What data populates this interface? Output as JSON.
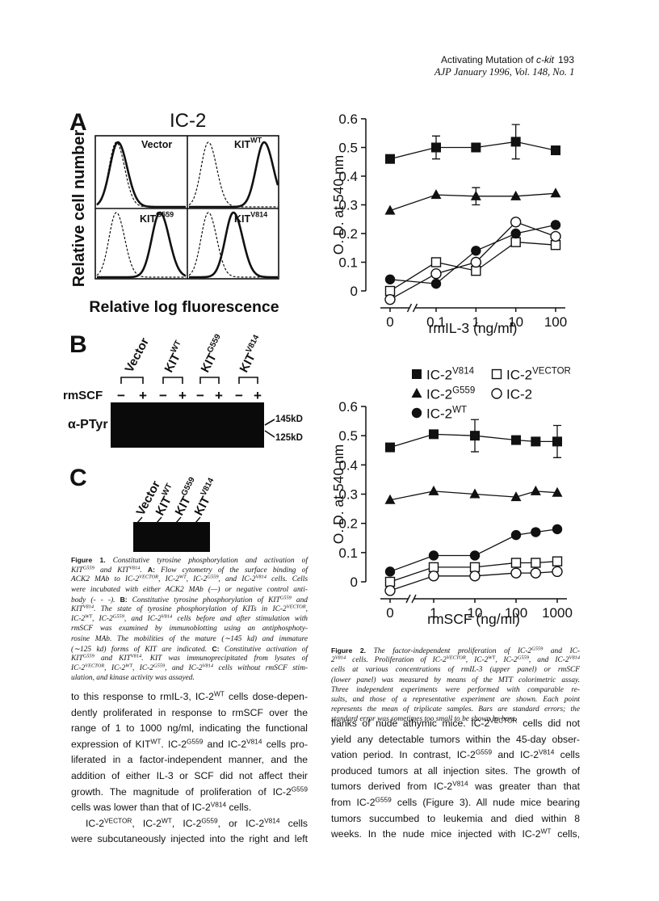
{
  "header": {
    "running_title": [
      "Activating Mutation of ",
      {
        "i": "c-kit"
      }
    ],
    "page_number": "193",
    "journal": "AJP January 1996, Vol. 148, No. 1"
  },
  "figure1": {
    "panel_a": {
      "label": "A",
      "title": "IC-2",
      "panels": [
        [
          "Vector"
        ],
        [
          "KIT",
          {
            "sup": "WT"
          }
        ],
        [
          "KIT",
          {
            "sup": "G559"
          }
        ],
        [
          "KIT",
          {
            "sup": "V814"
          }
        ]
      ],
      "y_label": "Relative cell number",
      "x_label": "Relative log fluorescence"
    },
    "panel_b": {
      "label": "B",
      "lanes": [
        [
          "Vector"
        ],
        [
          "KIT",
          {
            "sup": "WT"
          }
        ],
        [
          "KIT",
          {
            "sup": "G559"
          }
        ],
        [
          "KIT",
          {
            "sup": "V814"
          }
        ]
      ],
      "row_label": "rmSCF",
      "signs": [
        "−",
        "+",
        "−",
        "+",
        "−",
        "+",
        "−",
        "+"
      ],
      "blot_label": "α-PTyr",
      "markers": [
        "145kD",
        "125kD"
      ]
    },
    "panel_c": {
      "label": "C",
      "lanes": [
        [
          "Vector"
        ],
        [
          "KIT",
          {
            "sup": "WT"
          }
        ],
        [
          "KIT",
          {
            "sup": "G559"
          }
        ],
        [
          "KIT",
          {
            "sup": "V814"
          }
        ]
      ]
    },
    "caption": [
      [
        {
          "b": "Figure 1."
        },
        " Constitutive tyrosine phosphorylation and activation of"
      ],
      [
        "KIT",
        {
          "sup": "G559"
        },
        " and KIT",
        {
          "sup": "V814"
        },
        ". ",
        {
          "b": "A:"
        },
        " Flow cytometry of the surface binding of"
      ],
      [
        "ACK2 MAb to IC-2",
        {
          "sup": "VECTOR"
        },
        ", IC-2",
        {
          "sup": "WT"
        },
        ", IC-2",
        {
          "sup": "G559"
        },
        ", and IC-2",
        {
          "sup": "V814"
        },
        " cells. Cells"
      ],
      [
        "were incubated with either ACK2 MAb (—) or negative control anti-"
      ],
      [
        "body (- - -). ",
        {
          "b": "B:"
        },
        " Constitutive tyrosine phosphorylation of KIT",
        {
          "sup": "G559"
        },
        " and"
      ],
      [
        "KIT",
        {
          "sup": "V814"
        },
        ". The state of tyrosine phosphorylation of KITs in IC-2",
        {
          "sup": "VECTOR"
        },
        ","
      ],
      [
        "IC-2",
        {
          "sup": "WT"
        },
        ", IC-2",
        {
          "sup": "G559"
        },
        ", and IC-2",
        {
          "sup": "V814"
        },
        " cells before and after stimulation with"
      ],
      [
        "rmSCF was examined by immunoblotting using an antiphosphoty-"
      ],
      [
        "rosine MAb. The mobilities of the mature (∼145 kd) and immature"
      ],
      [
        "(∼125 kd) forms of KIT are indicated. ",
        {
          "b": "C:"
        },
        " Constitutive activation of"
      ],
      [
        "KIT",
        {
          "sup": "G559"
        },
        " and KIT",
        {
          "sup": "V814"
        },
        ". KIT was immunoprecipitated from lysates of"
      ],
      [
        "IC-2",
        {
          "sup": "VECTOR"
        },
        ", IC-2",
        {
          "sup": "WT"
        },
        ", IC-2",
        {
          "sup": "G559"
        },
        ", and IC-2",
        {
          "sup": "V814"
        },
        " cells without rmSCF stim-"
      ],
      [
        "ulation, and kinase activity was assayed."
      ]
    ]
  },
  "chart_data": [
    {
      "type": "line",
      "y_label": "O. D. at 540 nm",
      "x_label": "rmIL-3 (ng/ml)",
      "xscale": "log",
      "x_break": true,
      "x": [
        0,
        0.1,
        1,
        10,
        100
      ],
      "xlim": [
        0.1,
        100
      ],
      "xticks": [
        0,
        0.1,
        1,
        10,
        100
      ],
      "ylim": [
        0,
        0.6
      ],
      "yticks": [
        0,
        0.1,
        0.2,
        0.3,
        0.4,
        0.5,
        0.6
      ],
      "series": [
        {
          "marker": "filled-square",
          "color": "#111111",
          "values": [
            0.46,
            0.5,
            0.5,
            0.52,
            0.49
          ],
          "errors": [
            null,
            0.04,
            null,
            0.06,
            null
          ]
        },
        {
          "marker": "open-square",
          "color": "#111111",
          "values": [
            0.0,
            0.1,
            0.07,
            0.17,
            0.16
          ]
        },
        {
          "marker": "filled-triangle",
          "color": "#111111",
          "values": [
            0.28,
            0.335,
            0.33,
            0.33,
            0.34
          ],
          "errors": [
            null,
            null,
            0.03,
            null,
            null
          ]
        },
        {
          "marker": "open-circle",
          "color": "#111111",
          "values": [
            -0.03,
            0.06,
            0.1,
            0.24,
            0.19
          ]
        },
        {
          "marker": "filled-circle",
          "color": "#111111",
          "values": [
            0.04,
            0.025,
            0.14,
            0.2,
            0.23
          ]
        }
      ]
    },
    {
      "type": "line",
      "y_label": "O. D. at 540 nm",
      "x_label": "rmSCF (ng/ml)",
      "xscale": "log",
      "x_break": true,
      "x": [
        0,
        1,
        10,
        100,
        300,
        1000
      ],
      "xlim": [
        1,
        1000
      ],
      "xticks": [
        0,
        1,
        10,
        100,
        1000
      ],
      "ylim": [
        0,
        0.6
      ],
      "yticks": [
        0,
        0.1,
        0.2,
        0.3,
        0.4,
        0.5,
        0.6
      ],
      "series": [
        {
          "marker": "filled-square",
          "color": "#111111",
          "values": [
            0.46,
            0.505,
            0.5,
            0.485,
            0.48,
            0.48
          ],
          "errors": [
            null,
            null,
            0.055,
            null,
            null,
            0.055
          ]
        },
        {
          "marker": "open-square",
          "color": "#111111",
          "values": [
            0.0,
            0.05,
            0.05,
            0.065,
            0.065,
            0.07
          ]
        },
        {
          "marker": "filled-triangle",
          "color": "#111111",
          "values": [
            0.28,
            0.31,
            0.3,
            0.29,
            0.31,
            0.305
          ]
        },
        {
          "marker": "open-circle",
          "color": "#111111",
          "values": [
            -0.03,
            0.02,
            0.02,
            0.03,
            0.03,
            0.035
          ]
        },
        {
          "marker": "filled-circle",
          "color": "#111111",
          "values": [
            0.035,
            0.09,
            0.09,
            0.16,
            0.17,
            0.18
          ]
        }
      ]
    }
  ],
  "legend": [
    {
      "marker": "filled-square",
      "name": "IC-2",
      "sup": "V814"
    },
    {
      "marker": "open-square",
      "name": "IC-2",
      "sup": "VECTOR"
    },
    {
      "marker": "filled-triangle",
      "name": "IC-2",
      "sup": "G559"
    },
    {
      "marker": "open-circle",
      "name": "IC-2"
    },
    {
      "marker": "filled-circle",
      "name": "IC-2",
      "sup": "WT"
    }
  ],
  "figure2": {
    "caption": [
      [
        {
          "b": "Figure 2."
        },
        " The factor-independent proliferation of IC-2",
        {
          "sup": "G559"
        },
        " and IC-"
      ],
      [
        "2",
        {
          "sup": "V814"
        },
        " cells. Proliferation of IC-2",
        {
          "sup": "VECTOR"
        },
        ", IC-2",
        {
          "sup": "WT"
        },
        ", IC-2",
        {
          "sup": "G559"
        },
        ", and IC-2",
        {
          "sup": "V814"
        }
      ],
      [
        "cells at various concentrations of rmIL-3 (upper panel) or rmSCF"
      ],
      [
        "(lower panel) was measured by means of the MTT colorimetric assay."
      ],
      [
        "Three independent experiments were performed with comparable re-"
      ],
      [
        "sults, and those of a representative experiment are shown. Each point"
      ],
      [
        "represents the mean of triplicate samples. Bars are standard errors; the"
      ],
      [
        "standard error was sometimes too small to be shown by bars."
      ]
    ]
  },
  "body": {
    "left": [
      [
        "to this response to rmIL-3, IC-2",
        {
          "sup": "WT"
        },
        " cells dose-depen-"
      ],
      [
        "dently proliferated in response to rmSCF over the"
      ],
      [
        "range of 1 to 1000 ng/ml, indicating the functional"
      ],
      [
        "expression of KIT",
        {
          "sup": "WT"
        },
        ". IC-2",
        {
          "sup": "G559"
        },
        " and IC-2",
        {
          "sup": "V814"
        },
        " cells pro-"
      ],
      [
        "liferated in a factor-independent manner, and the"
      ],
      [
        "addition of either IL-3 or SCF did not affect their"
      ],
      [
        "growth. The magnitude of proliferation of IC-2",
        {
          "sup": "G559"
        }
      ],
      [
        "cells was lower than that of IC-2",
        {
          "sup": "V814"
        },
        " cells."
      ],
      [
        "IC-2",
        {
          "sup": "VECTOR"
        },
        ", IC-2",
        {
          "sup": "WT"
        },
        ", IC-2",
        {
          "sup": "G559"
        },
        ", or IC-2",
        {
          "sup": "V814"
        },
        " cells"
      ],
      [
        "were subcutaneously injected into the right and left"
      ]
    ],
    "right": [
      [
        "flanks of nude athymic mice. IC-2",
        {
          "sup": "VECTOR"
        },
        " cells did not"
      ],
      [
        "yield any detectable tumors within the 45-day obser-"
      ],
      [
        "vation period. In contrast, IC-2",
        {
          "sup": "G559"
        },
        " and IC-2",
        {
          "sup": "V814"
        },
        " cells"
      ],
      [
        "produced tumors at all injection sites. The growth of"
      ],
      [
        "tumors derived from IC-2",
        {
          "sup": "V814"
        },
        " was greater than that"
      ],
      [
        "from IC-2",
        {
          "sup": "G559"
        },
        " cells (Figure 3). All nude mice bearing"
      ],
      [
        "tumors succumbed to leukemia and died within 8"
      ],
      [
        "weeks. In the nude mice injected with IC-2",
        {
          "sup": "WT"
        },
        " cells,"
      ]
    ]
  }
}
